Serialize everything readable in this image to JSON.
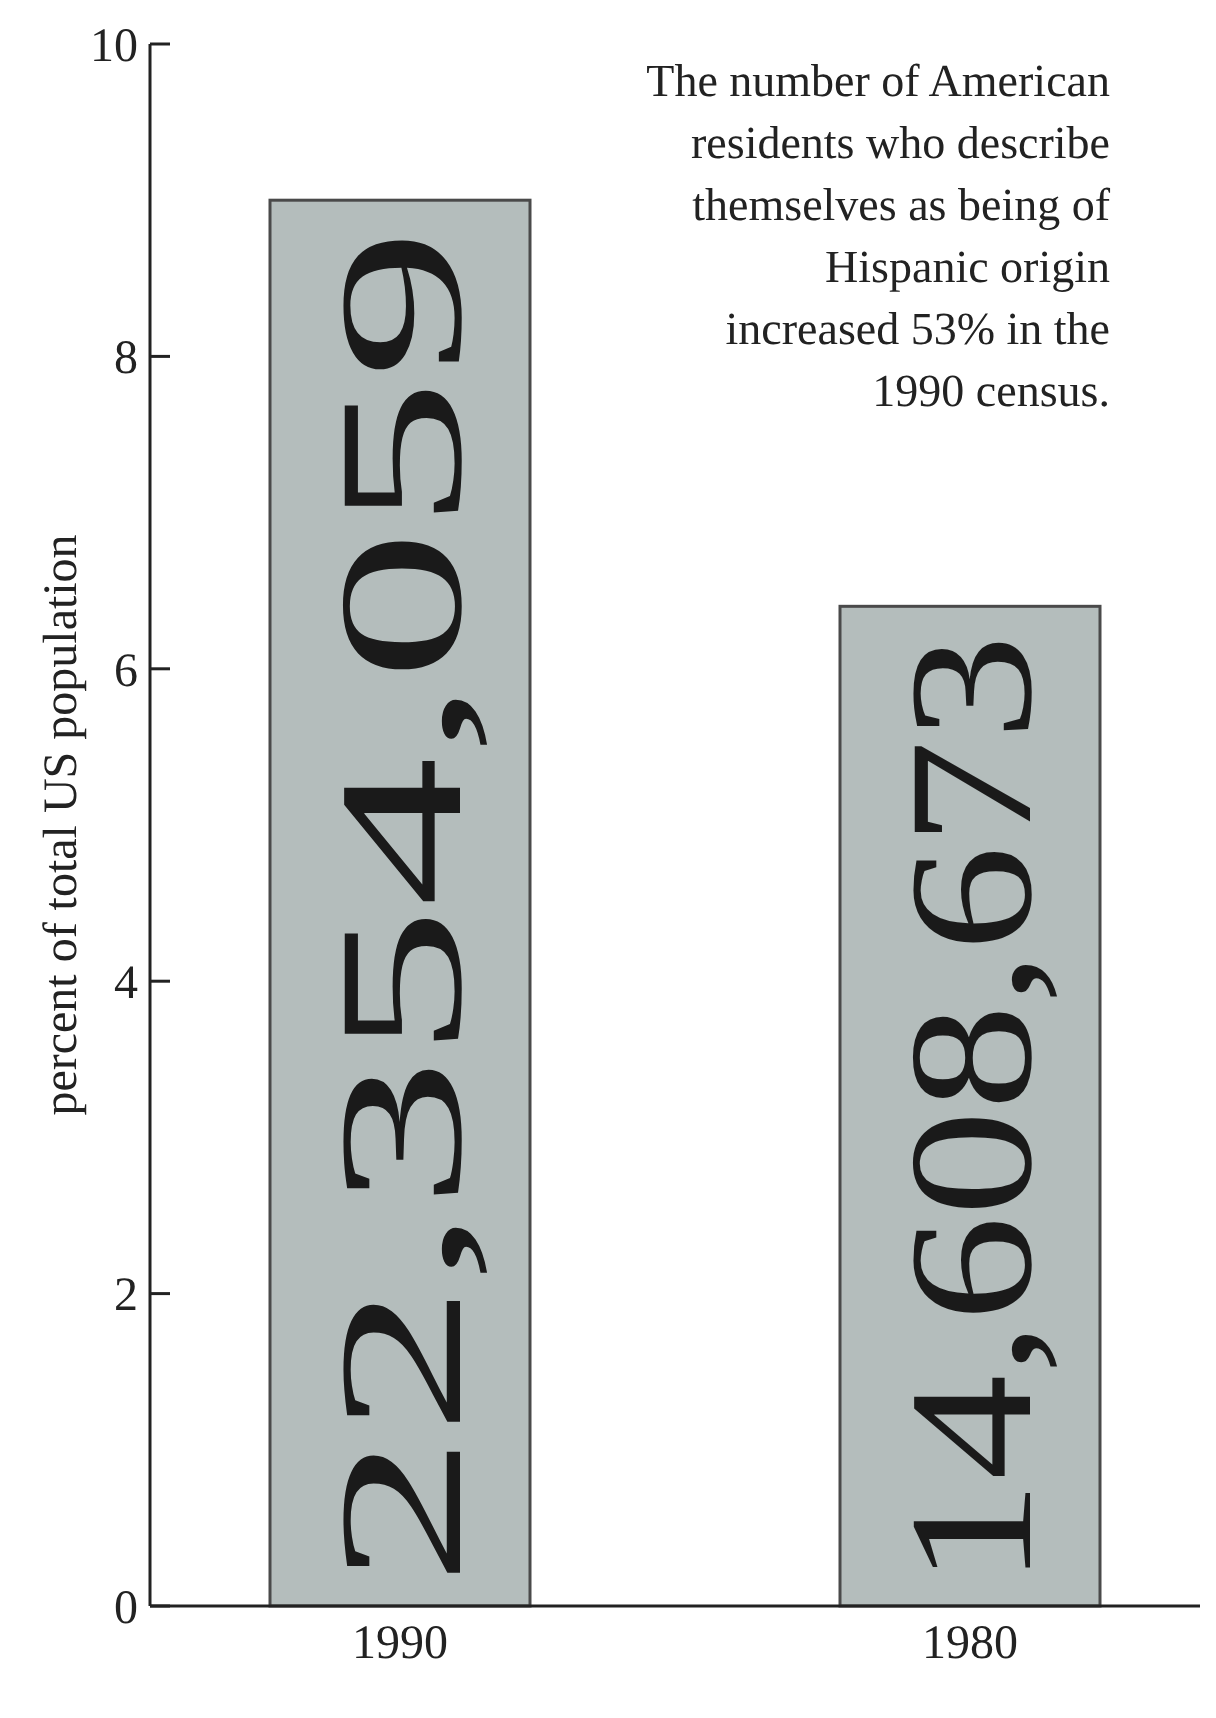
{
  "chart_data": {
    "type": "bar",
    "ylabel": "percent of total US population",
    "categories": [
      "1990",
      "1980"
    ],
    "values": [
      9.0,
      6.4
    ],
    "color": "#b4bdbc",
    "ylim": [
      0,
      10
    ],
    "yticks": [
      0,
      2,
      4,
      6,
      8,
      10
    ],
    "annotations": [
      "The number of American residents who describe themselves as being of Hispanic origin increased 53% in the 1990 census.",
      {
        "text": "22,354,059",
        "x": "1990",
        "y": 9.0
      },
      {
        "text": "14,608,673",
        "x": "1980",
        "y": 6.4
      }
    ]
  }
}
